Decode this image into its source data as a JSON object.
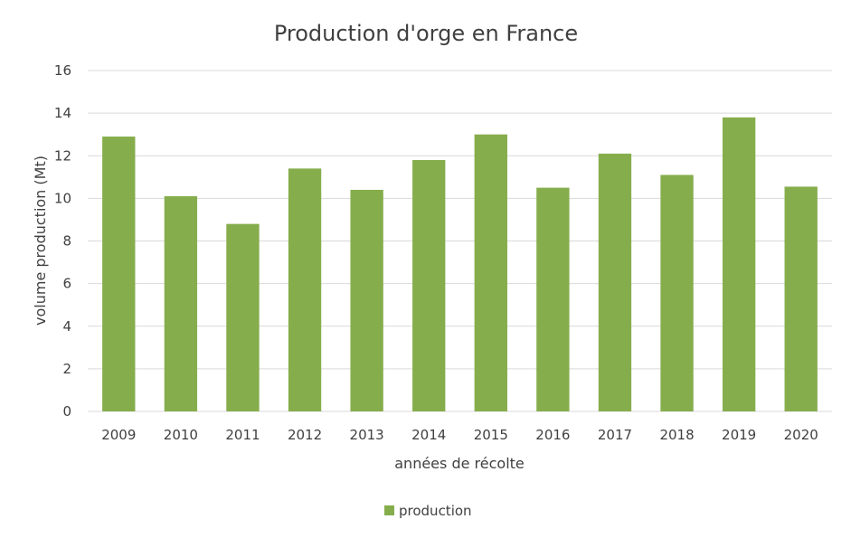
{
  "chart_data": {
    "type": "bar",
    "title": "Production d'orge en France",
    "xlabel": "années de récolte",
    "ylabel": "volume production (Mt)",
    "categories": [
      "2009",
      "2010",
      "2011",
      "2012",
      "2013",
      "2014",
      "2015",
      "2016",
      "2017",
      "2018",
      "2019",
      "2020"
    ],
    "series": [
      {
        "name": "production",
        "color": "#86ad4c",
        "values": [
          12.9,
          10.1,
          8.8,
          11.4,
          10.4,
          11.8,
          13.0,
          10.5,
          12.1,
          11.1,
          13.8,
          10.55
        ]
      }
    ],
    "ylim": [
      0,
      16
    ],
    "yticks": [
      "0",
      "2",
      "4",
      "6",
      "8",
      "10",
      "12",
      "14",
      "16"
    ],
    "grid": true,
    "legend_position": "bottom"
  }
}
